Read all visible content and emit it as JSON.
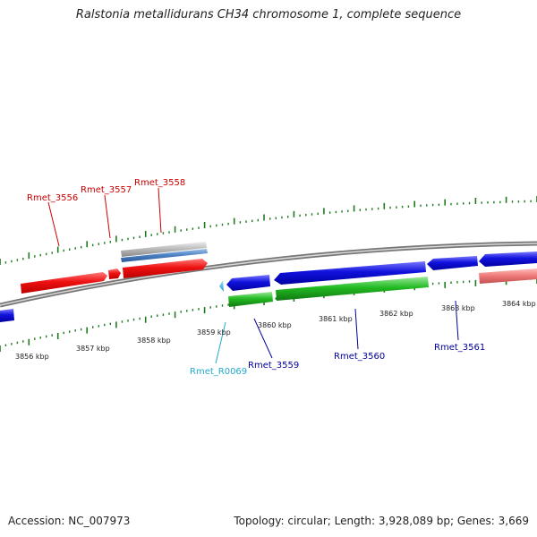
{
  "title": "Ralstonia metallidurans CH34 chromosome 1, complete sequence",
  "footer": {
    "accession": "Accession: NC_007973",
    "summary": "Topology: circular; Length: 3,928,089 bp; Genes: 3,669"
  },
  "colors": {
    "forward_cds": "#ee1111",
    "reverse_cds": "#1111dd",
    "reverse_gene": "#22bb22",
    "trna": "#33aadd",
    "grey_feature": "#b0b0b0",
    "blue_feature": "#4a7fc0",
    "pink_feature": "#ee7777",
    "forward_label": "#cc0000",
    "reverse_label": "#000099",
    "trna_label": "#22aacc",
    "tick_mark": "#1f7a1f",
    "backbone": "#888888"
  },
  "scale": {
    "unit": "kbp",
    "ticks": [
      {
        "label": "3856 kbp"
      },
      {
        "label": "3857 kbp"
      },
      {
        "label": "3858 kbp"
      },
      {
        "label": "3859 kbp"
      },
      {
        "label": "3860 kbp"
      },
      {
        "label": "3861 kbp"
      },
      {
        "label": "3862 kbp"
      },
      {
        "label": "3863 kbp"
      },
      {
        "label": "3864 kbp"
      }
    ]
  },
  "gene_labels": [
    {
      "name": "Rmet_3556",
      "strand": "forward"
    },
    {
      "name": "Rmet_3557",
      "strand": "forward"
    },
    {
      "name": "Rmet_3558",
      "strand": "forward"
    },
    {
      "name": "Rmet_R0069",
      "strand": "trna"
    },
    {
      "name": "Rmet_3559",
      "strand": "reverse"
    },
    {
      "name": "Rmet_3560",
      "strand": "reverse"
    },
    {
      "name": "Rmet_3561",
      "strand": "reverse"
    }
  ]
}
